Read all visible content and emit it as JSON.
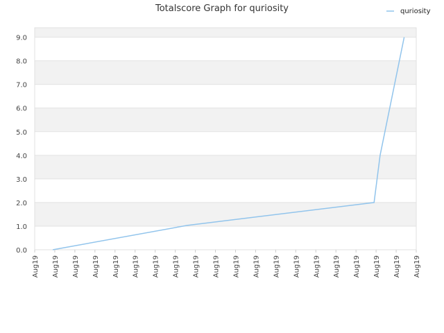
{
  "chart_data": {
    "type": "line",
    "title": "Totalscore Graph for quriosity",
    "xlabel": "",
    "ylabel": "",
    "legend": {
      "placement": "top-right"
    },
    "grid": true,
    "ylim": [
      0,
      9.4
    ],
    "yticks": [
      "0.0",
      "1.0",
      "2.0",
      "3.0",
      "4.0",
      "5.0",
      "6.0",
      "7.0",
      "8.0",
      "9.0"
    ],
    "xticks": [
      "Aug19",
      "Aug19",
      "Aug19",
      "Aug19",
      "Aug19",
      "Aug19",
      "Aug19",
      "Aug19",
      "Aug19",
      "Aug19",
      "Aug19",
      "Aug19",
      "Aug19",
      "Aug19",
      "Aug19",
      "Aug19",
      "Aug19",
      "Aug19",
      "Aug19",
      "Aug19"
    ],
    "series": [
      {
        "name": "quriosity",
        "color": "#91c4ec",
        "points": [
          {
            "x": 0.9,
            "y": 0
          },
          {
            "x": 7.6,
            "y": 1.03
          },
          {
            "x": 16.9,
            "y": 2.0
          },
          {
            "x": 17.2,
            "y": 4.0
          },
          {
            "x": 18.4,
            "y": 9.0
          }
        ]
      }
    ],
    "band_colors": [
      "#f2f2f2",
      "#ffffff"
    ]
  }
}
